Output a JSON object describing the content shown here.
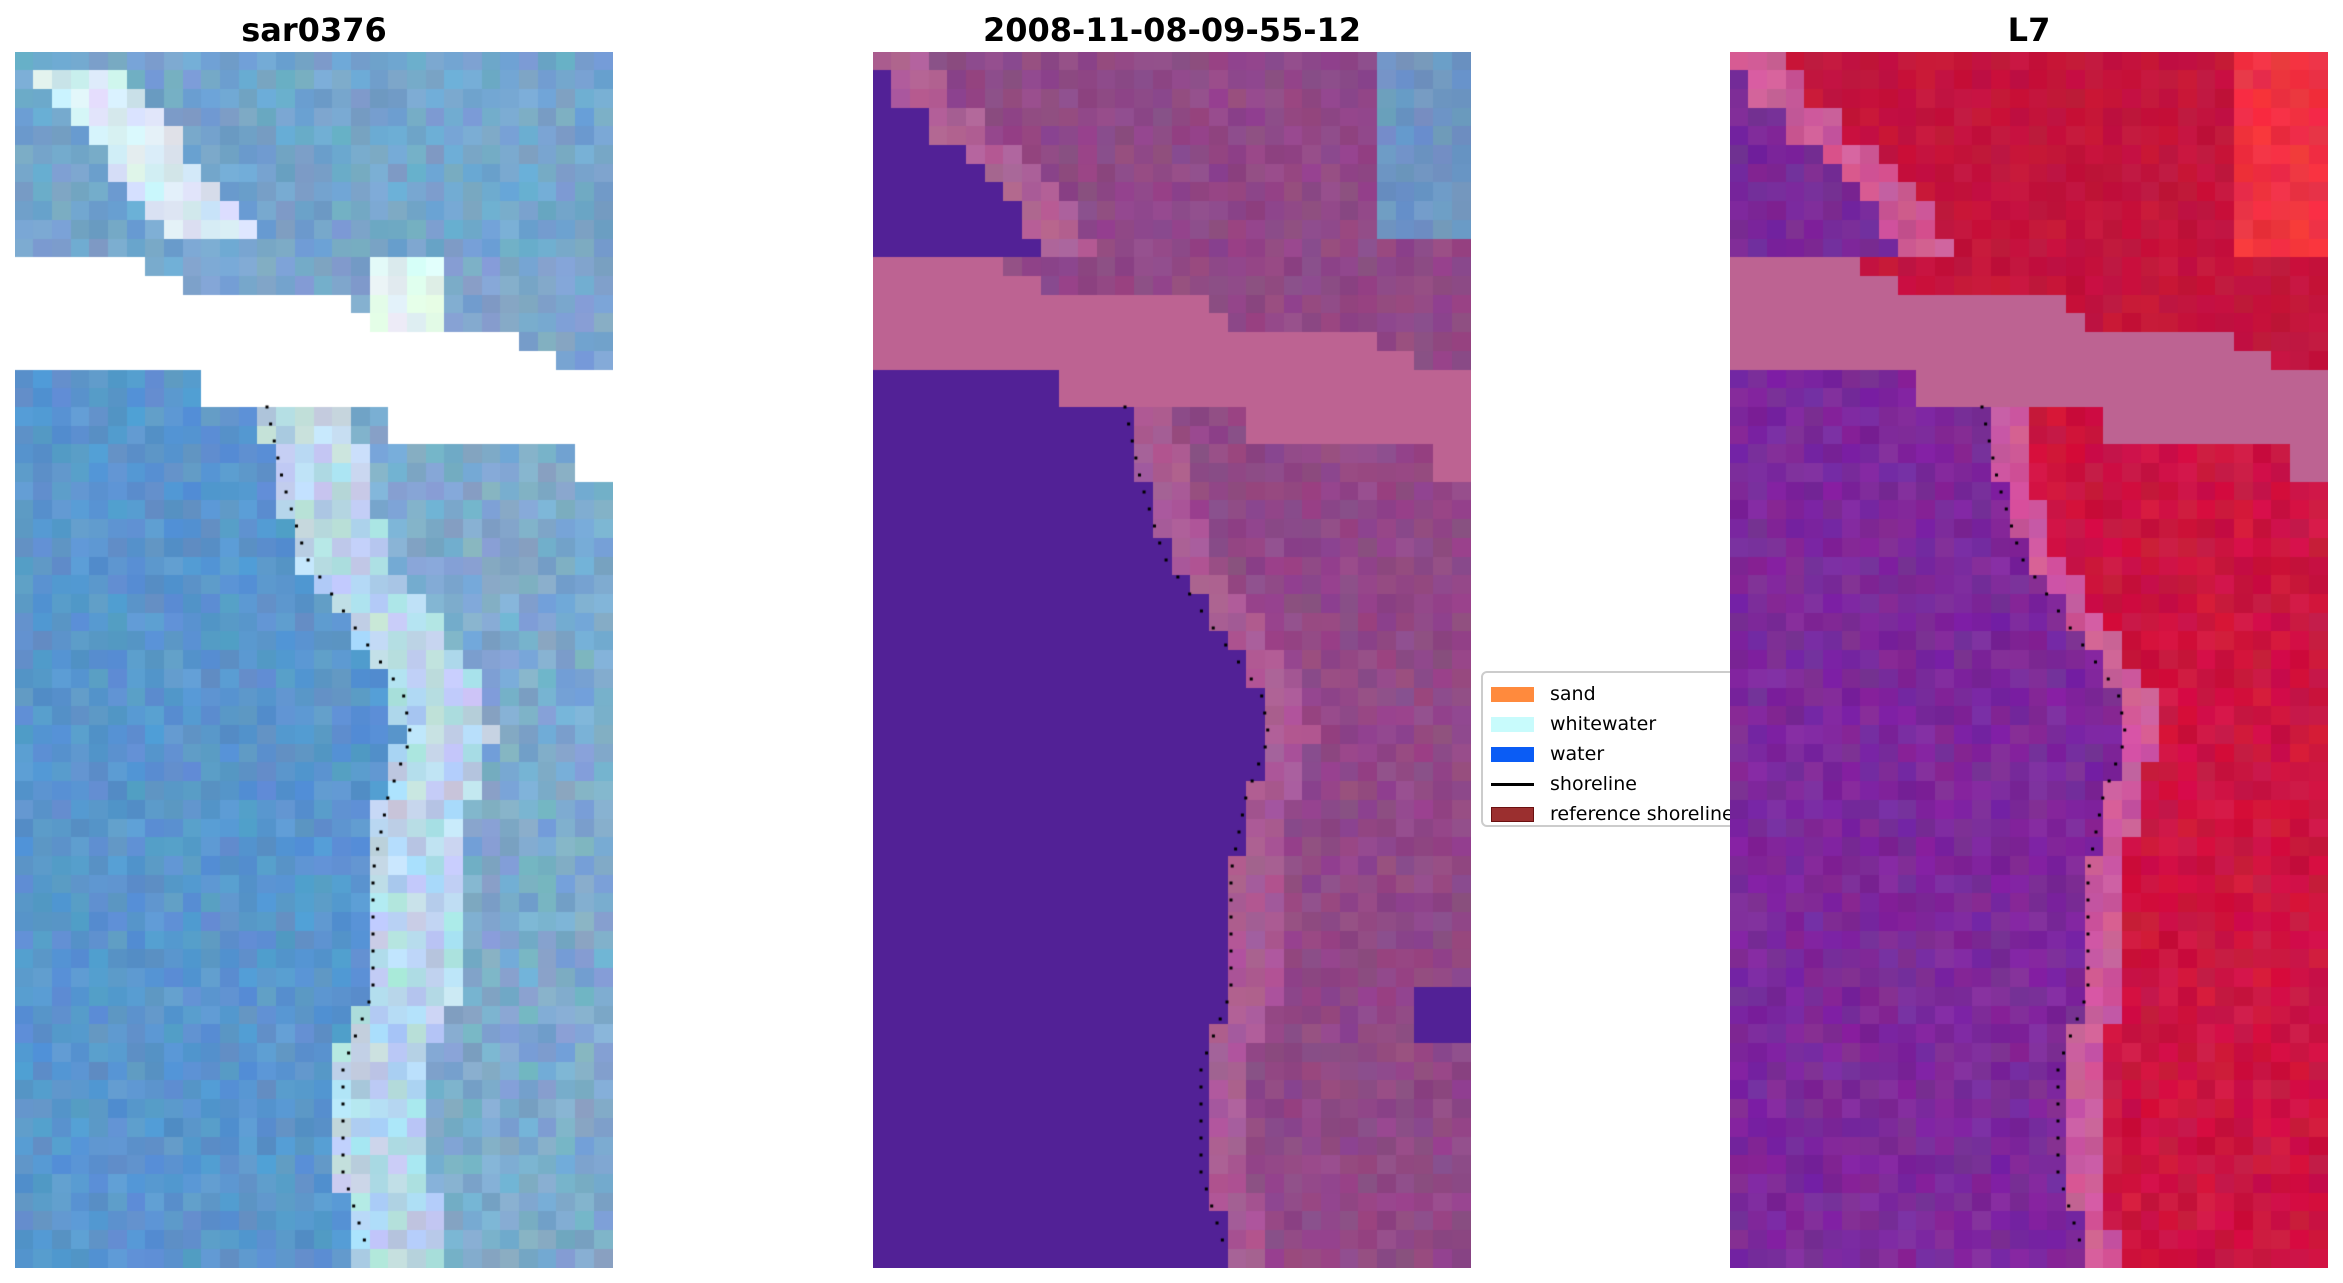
{
  "panels": [
    {
      "title": "sar0376"
    },
    {
      "title": "2008-11-08-09-55-12"
    },
    {
      "title": "L7"
    }
  ],
  "legend": {
    "entries": [
      {
        "label": "sand",
        "color": "#ff8a3d",
        "kind": "patch"
      },
      {
        "label": "whitewater",
        "color": "#c8fbfc",
        "kind": "patch"
      },
      {
        "label": "water",
        "color": "#0a5cf5",
        "kind": "patch"
      },
      {
        "label": "shoreline",
        "color": "#000000",
        "kind": "line"
      },
      {
        "label": "reference shoreline",
        "color": "#9b2f2f",
        "kind": "patch"
      }
    ]
  }
}
